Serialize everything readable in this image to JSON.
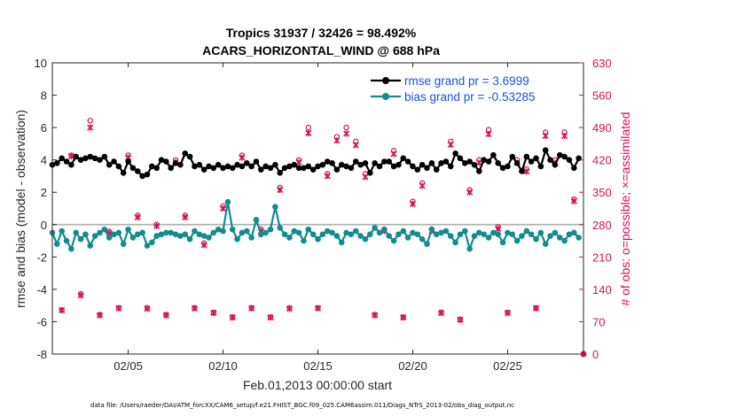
{
  "chart_data": {
    "type": "line",
    "title_line1": "Tropics 31937 / 32426 = 98.492%",
    "title_line2": "ACARS_HORIZONTAL_WIND @ 688 hPa",
    "xlabel": "Feb.01,2013 00:00:00 start",
    "ylabel_left": "rmse and bias (model - observation)",
    "ylabel_right": "# of obs: o=possible; ×=assimilated",
    "xlim": [
      1.0,
      29.0
    ],
    "ylim_left": [
      -8,
      10
    ],
    "ylim_right": [
      0,
      630
    ],
    "xticks": [
      5,
      10,
      15,
      20,
      25
    ],
    "xtick_labels": [
      "02/05",
      "02/10",
      "02/15",
      "02/20",
      "02/25"
    ],
    "yticks_left": [
      -8,
      -6,
      -4,
      -2,
      0,
      2,
      4,
      6,
      8,
      10
    ],
    "yticks_right": [
      0,
      70,
      140,
      210,
      280,
      350,
      420,
      490,
      560,
      630
    ],
    "zero_line": 0,
    "footnote": "data file: /Users/raeder/DAI/ATM_forcXX/CAM6_setup/f.e21.FHIST_BGC.f09_025.CAM6assim.011/Diags_NTrS_2013-02/obs_diag_output.nc",
    "colors": {
      "rmse": "#000000",
      "bias": "#138c8c",
      "obs": "#d6105a",
      "zero": "#b3b3b3",
      "legend_text": "#1a4fe0"
    },
    "series": [
      {
        "name": "rmse grand pr = 3.6999",
        "role": "rmse",
        "x": [
          1.0,
          1.25,
          1.5,
          1.75,
          2.0,
          2.25,
          2.5,
          2.75,
          3.0,
          3.25,
          3.5,
          3.75,
          4.0,
          4.25,
          4.5,
          4.75,
          5.0,
          5.25,
          5.5,
          5.75,
          6.0,
          6.25,
          6.5,
          6.75,
          7.0,
          7.25,
          7.5,
          7.75,
          8.0,
          8.25,
          8.5,
          8.75,
          9.0,
          9.25,
          9.5,
          9.75,
          10.0,
          10.25,
          10.5,
          10.75,
          11.0,
          11.25,
          11.5,
          11.75,
          12.0,
          12.25,
          12.5,
          12.75,
          13.0,
          13.25,
          13.5,
          13.75,
          14.0,
          14.25,
          14.5,
          14.75,
          15.0,
          15.25,
          15.5,
          15.75,
          16.0,
          16.25,
          16.5,
          16.75,
          17.0,
          17.25,
          17.5,
          17.75,
          18.0,
          18.25,
          18.5,
          18.75,
          19.0,
          19.25,
          19.5,
          19.75,
          20.0,
          20.25,
          20.5,
          20.75,
          21.0,
          21.25,
          21.5,
          21.75,
          22.0,
          22.25,
          22.5,
          22.75,
          23.0,
          23.25,
          23.5,
          23.75,
          24.0,
          24.25,
          24.5,
          24.75,
          25.0,
          25.25,
          25.5,
          25.75,
          26.0,
          26.25,
          26.5,
          26.75,
          27.0,
          27.25,
          27.5,
          27.75,
          28.0,
          28.25,
          28.5,
          28.75
        ],
        "values": [
          3.7,
          3.8,
          4.1,
          3.9,
          3.7,
          4.2,
          4.0,
          4.1,
          4.2,
          4.1,
          4.0,
          4.2,
          3.7,
          3.9,
          3.6,
          3.2,
          3.9,
          3.5,
          3.3,
          3.0,
          3.1,
          3.6,
          3.5,
          4.0,
          3.9,
          3.5,
          3.8,
          3.7,
          4.4,
          4.2,
          3.6,
          3.7,
          3.4,
          3.6,
          3.5,
          3.7,
          3.5,
          3.6,
          3.5,
          3.7,
          3.6,
          3.8,
          3.6,
          3.9,
          3.4,
          3.6,
          3.5,
          3.7,
          3.2,
          3.5,
          3.6,
          3.7,
          3.5,
          3.5,
          3.6,
          3.4,
          3.6,
          3.7,
          3.9,
          3.8,
          3.4,
          3.7,
          3.6,
          3.5,
          3.9,
          3.7,
          3.8,
          3.2,
          3.8,
          3.6,
          3.9,
          3.9,
          3.6,
          3.7,
          4.1,
          3.9,
          3.6,
          3.4,
          3.7,
          3.5,
          3.8,
          3.4,
          3.8,
          3.9,
          3.6,
          4.4,
          4.1,
          3.8,
          3.9,
          3.7,
          3.3,
          4.0,
          3.9,
          4.3,
          3.8,
          3.5,
          3.6,
          4.2,
          3.8,
          3.3,
          4.2,
          3.9,
          4.1,
          3.6,
          4.6,
          4.0,
          3.7,
          4.3,
          4.2,
          4.0,
          3.5,
          4.1
        ],
        "pattern": "repeat-mean-3.7"
      },
      {
        "name": "bias grand pr = -0.53285",
        "role": "bias",
        "x": [
          1.0,
          1.25,
          1.5,
          1.75,
          2.0,
          2.25,
          2.5,
          2.75,
          3.0,
          3.25,
          3.5,
          3.75,
          4.0,
          4.25,
          4.5,
          4.75,
          5.0,
          5.25,
          5.5,
          5.75,
          6.0,
          6.25,
          6.5,
          6.75,
          7.0,
          7.25,
          7.5,
          7.75,
          8.0,
          8.25,
          8.5,
          8.75,
          9.0,
          9.25,
          9.5,
          9.75,
          10.0,
          10.25,
          10.5,
          10.75,
          11.0,
          11.25,
          11.5,
          11.75,
          12.0,
          12.25,
          12.5,
          12.75,
          13.0,
          13.25,
          13.5,
          13.75,
          14.0,
          14.25,
          14.5,
          14.75,
          15.0,
          15.25,
          15.5,
          15.75,
          16.0,
          16.25,
          16.5,
          16.75,
          17.0,
          17.25,
          17.5,
          17.75,
          18.0,
          18.25,
          18.5,
          18.75,
          19.0,
          19.25,
          19.5,
          19.75,
          20.0,
          20.25,
          20.5,
          20.75,
          21.0,
          21.25,
          21.5,
          21.75,
          22.0,
          22.25,
          22.5,
          22.75,
          23.0,
          23.25,
          23.5,
          23.75,
          24.0,
          24.25,
          24.5,
          24.75,
          25.0,
          25.25,
          25.5,
          25.75,
          26.0,
          26.25,
          26.5,
          26.75,
          27.0,
          27.25,
          27.5,
          27.75,
          28.0,
          28.25,
          28.5,
          28.75
        ],
        "values": [
          -0.5,
          -1.2,
          -0.4,
          -1.0,
          -1.5,
          -0.5,
          -0.9,
          -0.6,
          -1.3,
          -0.7,
          -0.5,
          -0.3,
          -0.8,
          -0.6,
          -0.5,
          -1.2,
          -0.3,
          -0.8,
          -0.6,
          -0.5,
          -1.3,
          -1.1,
          -0.7,
          -0.6,
          -0.5,
          -0.5,
          -0.6,
          -0.7,
          -0.6,
          -0.9,
          -0.4,
          -0.6,
          -0.7,
          -0.8,
          -0.5,
          -0.3,
          -0.4,
          1.4,
          -0.3,
          -0.9,
          -0.5,
          -0.4,
          -0.8,
          0.3,
          -0.6,
          -0.5,
          -0.3,
          1.1,
          -0.2,
          -0.6,
          -0.8,
          -0.4,
          -0.5,
          -1.0,
          -0.3,
          -0.6,
          -0.9,
          -0.6,
          -0.4,
          -0.5,
          -0.7,
          -1.1,
          -0.5,
          -0.6,
          -0.4,
          -0.7,
          -0.9,
          -0.6,
          -0.2,
          -0.5,
          -0.3,
          -0.7,
          -1.0,
          -0.6,
          -0.4,
          -0.8,
          -0.5,
          -0.6,
          -0.9,
          -1.2,
          -0.3,
          -0.6,
          -0.5,
          -0.4,
          -0.7,
          -1.1,
          -0.6,
          -0.4,
          -1.5,
          -0.7,
          -0.5,
          -0.6,
          -0.8,
          -0.5,
          -0.6,
          -1.1,
          -0.5,
          -0.6,
          -1.0,
          -0.7,
          -0.4,
          -0.6,
          -0.9,
          -0.5,
          -1.2,
          -0.7,
          -0.5,
          -0.8,
          -1.0,
          -0.6,
          -0.5,
          -0.8
        ],
        "pattern": "repeat-mean-neg"
      },
      {
        "name": "obs possible",
        "role": "obs_possible",
        "x": [
          1.5,
          2.0,
          2.5,
          3.0,
          3.5,
          4.0,
          4.5,
          5.0,
          5.5,
          6.0,
          6.5,
          7.0,
          7.5,
          8.0,
          8.5,
          9.0,
          9.5,
          10.0,
          10.5,
          11.0,
          11.5,
          12.0,
          12.5,
          13.0,
          13.5,
          14.0,
          14.5,
          15.0,
          15.5,
          16.0,
          16.5,
          17.0,
          17.5,
          18.0,
          18.5,
          19.0,
          19.5,
          20.0,
          20.5,
          21.0,
          21.5,
          22.0,
          22.5,
          23.0,
          23.5,
          24.0,
          24.5,
          25.0,
          25.5,
          26.0,
          26.5,
          27.0,
          27.5,
          28.0,
          28.5
        ],
        "values": [
          95,
          430,
          130,
          505,
          85,
          265,
          100,
          430,
          300,
          100,
          280,
          85,
          420,
          300,
          100,
          240,
          90,
          320,
          80,
          430,
          100,
          270,
          80,
          360,
          100,
          420,
          490,
          100,
          390,
          470,
          490,
          460,
          390,
          85,
          270,
          440,
          80,
          330,
          370,
          270,
          90,
          460,
          75,
          355,
          420,
          485,
          275,
          90,
          420,
          400,
          100,
          480,
          420,
          480,
          335
        ],
        "pattern": "scatter-0-630"
      },
      {
        "name": "obs assimilated",
        "role": "obs_assim",
        "x": [
          1.5,
          2.0,
          2.5,
          3.0,
          3.5,
          4.0,
          4.5,
          5.0,
          5.5,
          6.0,
          6.5,
          7.0,
          7.5,
          8.0,
          8.5,
          9.0,
          9.5,
          10.0,
          10.5,
          11.0,
          11.5,
          12.0,
          12.5,
          13.0,
          13.5,
          14.0,
          14.5,
          15.0,
          15.5,
          16.0,
          16.5,
          17.0,
          17.5,
          18.0,
          18.5,
          19.0,
          19.5,
          20.0,
          20.5,
          21.0,
          21.5,
          22.0,
          22.5,
          23.0,
          23.5,
          24.0,
          24.5,
          25.0,
          25.5,
          26.0,
          26.5,
          27.0,
          27.5,
          28.0,
          28.5
        ],
        "values": [
          95,
          428,
          127,
          490,
          84,
          262,
          99,
          425,
          296,
          98,
          277,
          84,
          415,
          296,
          99,
          236,
          89,
          315,
          79,
          425,
          99,
          266,
          79,
          355,
          98,
          415,
          478,
          99,
          385,
          462,
          477,
          452,
          383,
          84,
          266,
          433,
          79,
          325,
          364,
          266,
          89,
          453,
          74,
          350,
          414,
          476,
          271,
          89,
          414,
          395,
          99,
          472,
          414,
          472,
          331
        ],
        "pattern": "scatter-0-630"
      }
    ],
    "obs_end_marker": {
      "x": 29.0,
      "value": 0
    }
  }
}
